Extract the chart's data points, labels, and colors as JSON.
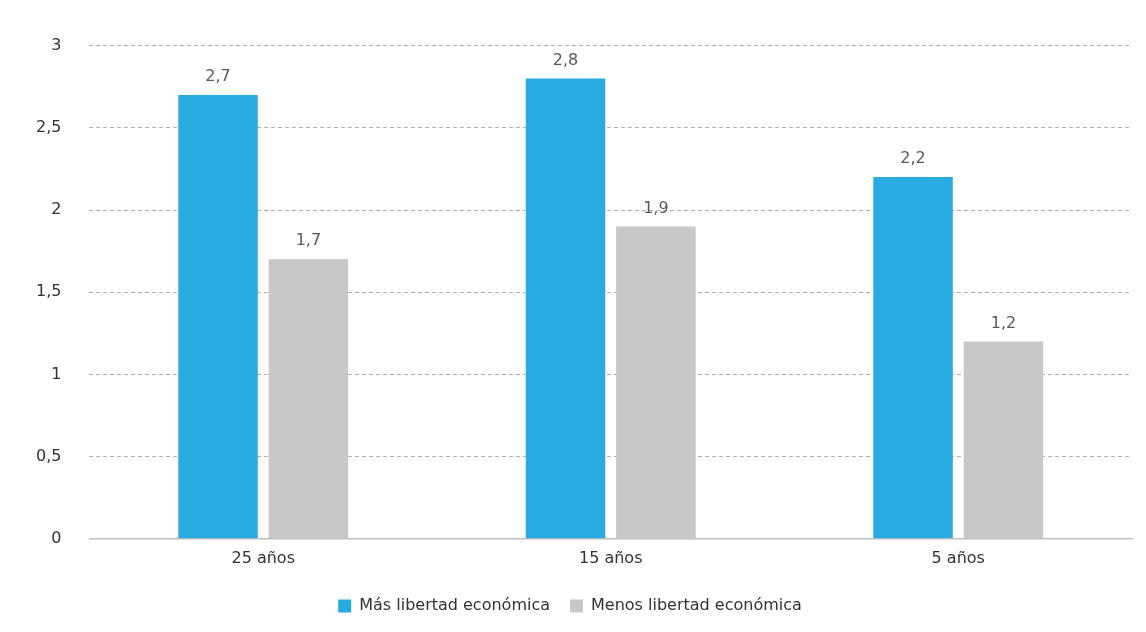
{
  "chart_data": {
    "type": "bar",
    "categories": [
      "25 años",
      "15 años",
      "5 años"
    ],
    "series": [
      {
        "name": "Más libertad económica",
        "color": "#29abe2",
        "values": [
          2.7,
          2.8,
          2.2
        ],
        "value_labels": [
          "2,7",
          "2,8",
          "2,2"
        ]
      },
      {
        "name": "Menos libertad económica",
        "color": "#c9c7c8",
        "values": [
          1.7,
          1.9,
          1.2
        ],
        "value_labels": [
          "1,7",
          "1,9",
          "1,2"
        ]
      }
    ],
    "ylim": [
      0,
      3
    ],
    "yticks": [
      0,
      {
        "value": 0.5,
        "label": "0,5"
      },
      1,
      {
        "value": 1.5,
        "label": "1,5"
      },
      2,
      {
        "value": 2.5,
        "label": "2,5"
      },
      3
    ],
    "grid": "y",
    "legend": "bottom"
  }
}
